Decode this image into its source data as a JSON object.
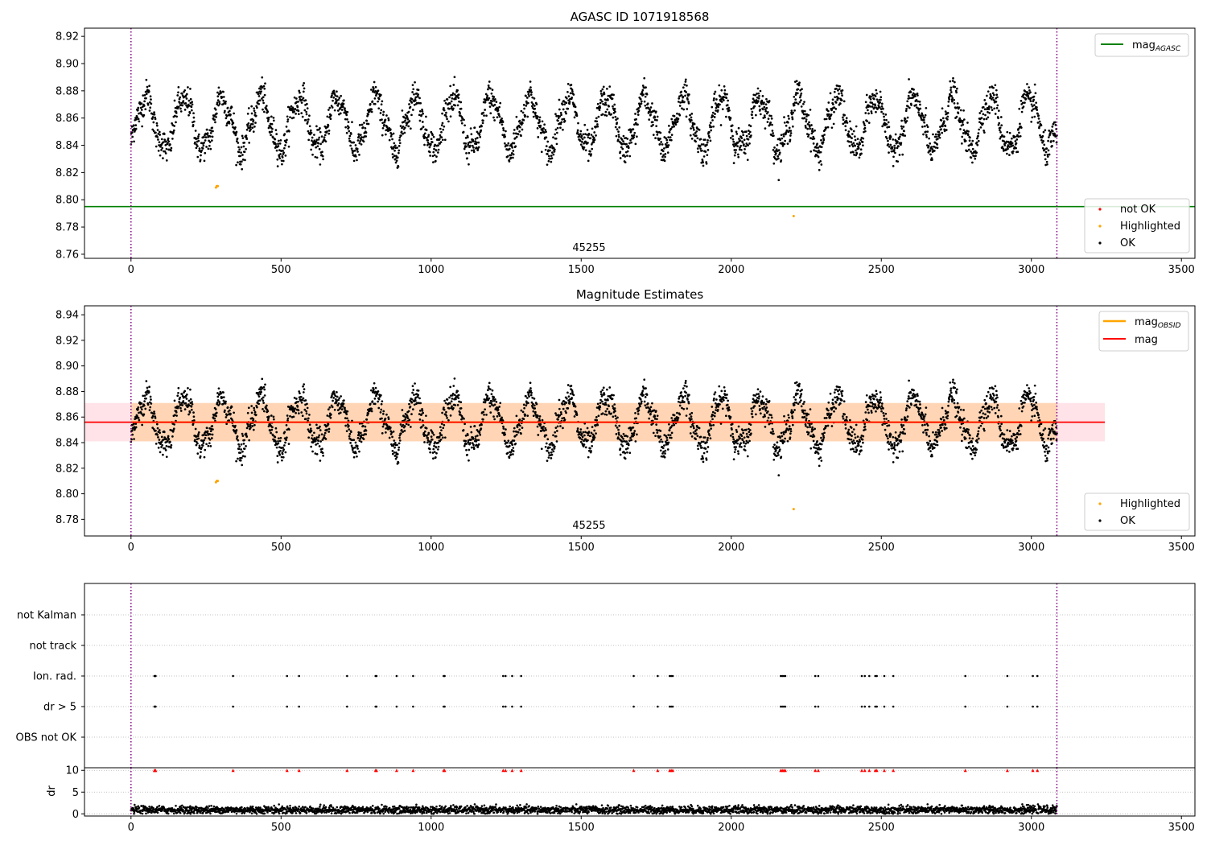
{
  "chart_data": [
    {
      "type": "scatter",
      "title": "AGASC ID 1071918568",
      "annotation": "45255",
      "xlim": [
        -155,
        3545
      ],
      "ylim": [
        8.757,
        8.926
      ],
      "x_ticks": [
        0,
        500,
        1000,
        1500,
        2000,
        2500,
        3000,
        3500
      ],
      "y_ticks": [
        8.76,
        8.78,
        8.8,
        8.82,
        8.84,
        8.86,
        8.88,
        8.9,
        8.92
      ],
      "vlines_dotted": [
        0,
        3085
      ],
      "lines": [
        {
          "name": "mag_AGASC",
          "label": "mag",
          "label_sub": "AGASC",
          "y": 8.795,
          "color": "#008000"
        }
      ],
      "series": [
        {
          "name": "not OK",
          "color": "#ff0000",
          "points": []
        },
        {
          "name": "Highlighted",
          "color": "#ffa500",
          "points": [
            [
              283,
              8.809
            ],
            [
              286,
              8.81
            ],
            [
              289,
              8.81
            ],
            [
              2208,
              8.788
            ]
          ]
        },
        {
          "name": "OK",
          "color": "#000000",
          "description": "about 3080 observations, x 0–3085, y roughly 8.81–8.90 oscillating around 8.856"
        }
      ],
      "legends": [
        {
          "position": "upper-right",
          "entries": [
            "mag_AGASC"
          ]
        },
        {
          "position": "lower-right",
          "entries": [
            "not OK",
            "Highlighted",
            "OK"
          ]
        }
      ]
    },
    {
      "type": "scatter",
      "title": "Magnitude Estimates",
      "annotation": "45255",
      "xlim": [
        -155,
        3545
      ],
      "ylim": [
        8.767,
        8.947
      ],
      "x_ticks": [
        0,
        500,
        1000,
        1500,
        2000,
        2500,
        3000,
        3500
      ],
      "y_ticks": [
        8.78,
        8.8,
        8.82,
        8.84,
        8.86,
        8.88,
        8.9,
        8.92,
        8.94
      ],
      "vlines_dotted": [
        0,
        3085
      ],
      "lines": [
        {
          "name": "mag_OBSID",
          "label": "mag",
          "label_sub": "OBSID",
          "y": 8.856,
          "x_range": [
            0,
            3085
          ],
          "color": "#ffa500"
        },
        {
          "name": "mag",
          "label": "mag",
          "y": 8.856,
          "x_range": [
            -155,
            3245
          ],
          "color": "#ff0000"
        }
      ],
      "bands": [
        {
          "y_range": [
            8.841,
            8.871
          ],
          "x_range": [
            -155,
            3245
          ],
          "color": "#ffc0cb"
        },
        {
          "y_range": [
            8.841,
            8.871
          ],
          "x_range": [
            0,
            3085
          ],
          "color": "#ffa500"
        }
      ],
      "series": [
        {
          "name": "Highlighted",
          "color": "#ffa500",
          "points": [
            [
              283,
              8.809
            ],
            [
              286,
              8.81
            ],
            [
              289,
              8.81
            ],
            [
              2208,
              8.788
            ]
          ]
        },
        {
          "name": "OK",
          "color": "#000000",
          "description": "same observations as top panel"
        }
      ],
      "legends": [
        {
          "position": "upper-right",
          "entries": [
            "mag_OBSID",
            "mag"
          ]
        },
        {
          "position": "lower-right",
          "entries": [
            "Highlighted",
            "OK"
          ]
        }
      ]
    },
    {
      "type": "scatter",
      "title": "",
      "xlim": [
        -155,
        3545
      ],
      "x_ticks": [
        0,
        500,
        1000,
        1500,
        2000,
        2500,
        3000,
        3500
      ],
      "categories": [
        "OBS not OK",
        "dr > 5",
        "Ion. rad.",
        "not track",
        "not Kalman"
      ],
      "flag_times": [
        78,
        80,
        82,
        340,
        520,
        560,
        720,
        815,
        818,
        885,
        940,
        1042,
        1045,
        1240,
        1248,
        1270,
        1300,
        1675,
        1755,
        1795,
        1800,
        1805,
        2165,
        2170,
        2175,
        2180,
        2280,
        2290,
        2435,
        2445,
        2460,
        2480,
        2485,
        2510,
        2540,
        2780,
        2920,
        3005,
        3020
      ],
      "vlines_dotted": [
        0,
        3085
      ]
    },
    {
      "type": "scatter",
      "title": "",
      "ylabel": "dr",
      "xlim": [
        -155,
        3545
      ],
      "ylim": [
        -0.5,
        10.6
      ],
      "x_ticks": [
        0,
        500,
        1000,
        1500,
        2000,
        2500,
        3000,
        3500
      ],
      "y_ticks": [
        0,
        5,
        10
      ],
      "clip_value": 10,
      "clipped_marker_color": "#ff0000",
      "series_description": "dr for every observation, mostly 0–2, values above 5 clipped at 10 (red triangles)",
      "vlines_dotted": [
        0,
        3085
      ]
    }
  ]
}
